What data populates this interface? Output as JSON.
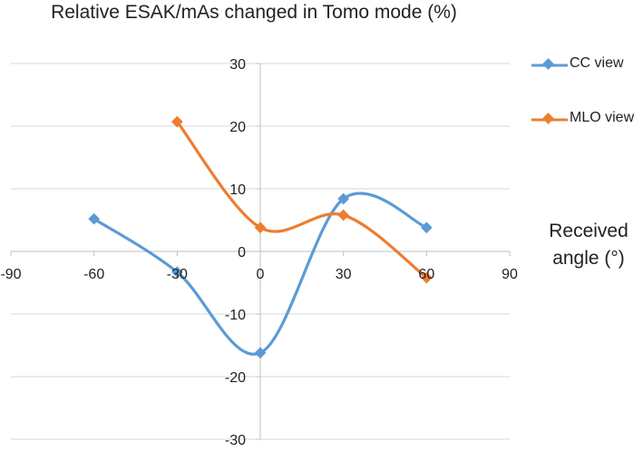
{
  "chart_data": {
    "type": "line",
    "title": "Relative ESAK/mAs changed in Tomo mode (%)",
    "xlabel_lines": [
      "Received",
      "angle (°)"
    ],
    "ylabel": "",
    "xlim": [
      -90,
      90
    ],
    "ylim": [
      -30,
      30
    ],
    "x_ticks": [
      -90,
      -60,
      -30,
      0,
      30,
      60,
      90
    ],
    "y_ticks": [
      30,
      20,
      10,
      0,
      -10,
      -20,
      -30
    ],
    "grid": "horizontal",
    "smoothed": true,
    "series": [
      {
        "name": "CC view",
        "color": "#5B9BD5",
        "x": [
          -60,
          -30,
          0,
          30,
          60
        ],
        "y": [
          5.2,
          -3.3,
          -16.2,
          8.4,
          3.8
        ]
      },
      {
        "name": "MLO view",
        "color": "#ED7D31",
        "x": [
          -30,
          0,
          30,
          60
        ],
        "y": [
          20.7,
          3.8,
          5.8,
          -4.2
        ]
      }
    ],
    "legend_position": "right"
  }
}
